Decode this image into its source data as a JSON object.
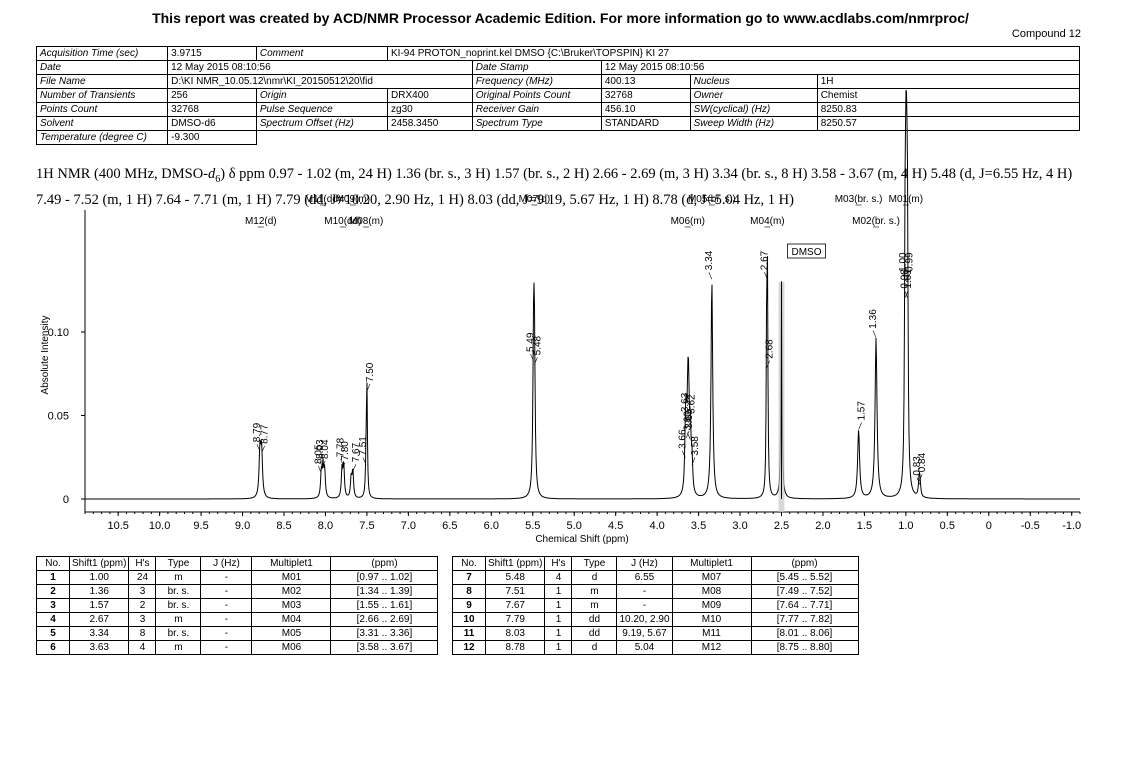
{
  "header": {
    "banner": "This report was created by ACD/NMR Processor Academic Edition. For more information go to www.acdlabs.com/nmrproc/",
    "compound": "Compound 12"
  },
  "acq": {
    "rows": [
      [
        "Acquisition Time (sec)",
        "3.9715",
        "Comment",
        "KI-94 PROTON_noprint.kel DMSO {C:\\Bruker\\TOPSPIN} KI 27",
        "",
        "",
        "",
        ""
      ],
      [
        "Date",
        "12 May 2015 08:10:56",
        "",
        "",
        "Date Stamp",
        "12 May 2015 08:10:56",
        "",
        ""
      ],
      [
        "File Name",
        "D:\\KI NMR_10.05.12\\nmr\\KI_20150512\\20\\fid",
        "",
        "",
        "Frequency (MHz)",
        "400.13",
        "Nucleus",
        "1H"
      ],
      [
        "Number of Transients",
        "256",
        "Origin",
        "DRX400",
        "Original Points Count",
        "32768",
        "Owner",
        "Chemist"
      ],
      [
        "Points Count",
        "32768",
        "Pulse Sequence",
        "zg30",
        "Receiver Gain",
        "456.10",
        "SW(cyclical) (Hz)",
        "8250.83"
      ],
      [
        "Solvent",
        "DMSO-d6",
        "Spectrum Offset (Hz)",
        "2458.3450",
        "Spectrum Type",
        "STANDARD",
        "Sweep Width (Hz)",
        "8250.57"
      ],
      [
        "Temperature (degree C)",
        "-9.300",
        "",
        "",
        "",
        "",
        "",
        ""
      ]
    ]
  },
  "nmr_text": {
    "prefix": "1H NMR (400 MHz, DMSO-",
    "d": "d",
    "sub": "6",
    "rest": ") δ ppm 0.97 - 1.02 (m, 24 H) 1.36 (br. s., 3 H) 1.57 (br. s., 2 H) 2.66 - 2.69 (m, 3 H) 3.34 (br. s., 8 H) 3.58 - 3.67 (m, 4 H) 5.48 (d, J=6.55 Hz, 4 H) 7.49 - 7.52 (m, 1 H) 7.64 - 7.71 (m, 1 H) 7.79 (dd, J=10.20, 2.90 Hz, 1 H) 8.03 (dd, J=9.19, 5.67 Hz, 1 H) 8.78 (d, J=5.04 Hz, 1 H)"
  },
  "chart_data": {
    "type": "line",
    "xlabel": "Chemical Shift (ppm)",
    "ylabel": "Absolute Intensity",
    "xlim": [
      10.9,
      -1.1
    ],
    "ylim": [
      -0.005,
      0.155
    ],
    "x_reversed": true,
    "x_ticks": [
      "10.5",
      "10.0",
      "9.5",
      "9.0",
      "8.5",
      "8.0",
      "7.5",
      "7.0",
      "6.5",
      "6.0",
      "5.5",
      "5.0",
      "4.5",
      "4.0",
      "3.5",
      "3.0",
      "2.5",
      "2.0",
      "1.5",
      "1.0",
      "0.5",
      "0",
      "-0.5",
      "-1.0"
    ],
    "x_tick_values": [
      10.5,
      10.0,
      9.5,
      9.0,
      8.5,
      8.0,
      7.5,
      7.0,
      6.5,
      6.0,
      5.5,
      5.0,
      4.5,
      4.0,
      3.5,
      3.0,
      2.5,
      2.0,
      1.5,
      1.0,
      0.5,
      0,
      -0.5,
      -1.0
    ],
    "y_ticks": [
      "0",
      "0.05",
      "0.10"
    ],
    "y_tick_values": [
      0,
      0.05,
      0.1
    ],
    "peaks": [
      {
        "ppm": 8.79,
        "h": 0.028,
        "w": 0.012
      },
      {
        "ppm": 8.77,
        "h": 0.027,
        "w": 0.012
      },
      {
        "ppm": 8.05,
        "h": 0.015,
        "w": 0.01
      },
      {
        "ppm": 8.03,
        "h": 0.018,
        "w": 0.01
      },
      {
        "ppm": 8.01,
        "h": 0.016,
        "w": 0.01
      },
      {
        "ppm": 7.8,
        "h": 0.017,
        "w": 0.01
      },
      {
        "ppm": 7.78,
        "h": 0.019,
        "w": 0.01
      },
      {
        "ppm": 7.69,
        "h": 0.012,
        "w": 0.01
      },
      {
        "ppm": 7.67,
        "h": 0.016,
        "w": 0.01
      },
      {
        "ppm": 7.51,
        "h": 0.02,
        "w": 0.008
      },
      {
        "ppm": 7.5,
        "h": 0.064,
        "w": 0.007
      },
      {
        "ppm": 5.49,
        "h": 0.082,
        "w": 0.01
      },
      {
        "ppm": 5.48,
        "h": 0.08,
        "w": 0.01
      },
      {
        "ppm": 3.66,
        "h": 0.024,
        "w": 0.01
      },
      {
        "ppm": 3.65,
        "h": 0.036,
        "w": 0.01
      },
      {
        "ppm": 3.63,
        "h": 0.046,
        "w": 0.01
      },
      {
        "ppm": 3.62,
        "h": 0.045,
        "w": 0.01
      },
      {
        "ppm": 3.6,
        "h": 0.035,
        "w": 0.01
      },
      {
        "ppm": 3.58,
        "h": 0.02,
        "w": 0.01
      },
      {
        "ppm": 3.34,
        "h": 0.131,
        "w": 0.012
      },
      {
        "ppm": 2.68,
        "h": 0.078,
        "w": 0.006
      },
      {
        "ppm": 2.67,
        "h": 0.131,
        "w": 0.007
      },
      {
        "ppm": 2.5,
        "h": 0.13,
        "w": 0.008
      },
      {
        "ppm": 1.57,
        "h": 0.041,
        "w": 0.014
      },
      {
        "ppm": 1.36,
        "h": 0.096,
        "w": 0.014
      },
      {
        "ppm": 1.01,
        "h": 0.12,
        "w": 0.008
      },
      {
        "ppm": 1.0,
        "h": 0.13,
        "w": 0.008
      },
      {
        "ppm": 0.99,
        "h": 0.13,
        "w": 0.008
      },
      {
        "ppm": 0.98,
        "h": 0.12,
        "w": 0.008
      },
      {
        "ppm": 0.84,
        "h": 0.01,
        "w": 0.01
      },
      {
        "ppm": 0.83,
        "h": 0.008,
        "w": 0.01
      }
    ],
    "peak_labels": [
      {
        "ppm": 8.79,
        "text": "8.79"
      },
      {
        "ppm": 8.77,
        "text": "8.77"
      },
      {
        "ppm": 8.05,
        "text": "8.05"
      },
      {
        "ppm": 8.04,
        "text": "8.04"
      },
      {
        "ppm": 8.03,
        "text": "8.03"
      },
      {
        "ppm": 7.8,
        "text": "7.80"
      },
      {
        "ppm": 7.78,
        "text": "7.78"
      },
      {
        "ppm": 7.67,
        "text": "7.67"
      },
      {
        "ppm": 7.51,
        "text": "7.51"
      },
      {
        "ppm": 7.5,
        "text": "7.50"
      },
      {
        "ppm": 5.49,
        "text": "5.49"
      },
      {
        "ppm": 5.48,
        "text": "5.48"
      },
      {
        "ppm": 3.66,
        "text": "3.66"
      },
      {
        "ppm": 3.65,
        "text": "3.65"
      },
      {
        "ppm": 3.63,
        "text": "3.63"
      },
      {
        "ppm": 3.62,
        "text": "3.62"
      },
      {
        "ppm": 3.6,
        "text": "3.60"
      },
      {
        "ppm": 3.58,
        "text": "3.58"
      },
      {
        "ppm": 3.34,
        "text": "3.34"
      },
      {
        "ppm": 2.68,
        "text": "2.68"
      },
      {
        "ppm": 2.67,
        "text": "2.67"
      },
      {
        "ppm": 1.57,
        "text": "1.57"
      },
      {
        "ppm": 1.36,
        "text": "1.36"
      },
      {
        "ppm": 1.01,
        "text": "1.01"
      },
      {
        "ppm": 1.0,
        "text": "1.00"
      },
      {
        "ppm": 0.99,
        "text": "0.99"
      },
      {
        "ppm": 0.98,
        "text": "0.98"
      },
      {
        "ppm": 0.84,
        "text": "0.84"
      },
      {
        "ppm": 0.83,
        "text": "0.83"
      }
    ],
    "multiplet_labels": [
      {
        "text": "M01(m)",
        "ppm": 1.0
      },
      {
        "text": "M02(br. s.)",
        "ppm": 1.36
      },
      {
        "text": "M03(br. s.)",
        "ppm": 1.57
      },
      {
        "text": "M04(m)",
        "ppm": 2.67
      },
      {
        "text": "M05(br. s.)",
        "ppm": 3.34
      },
      {
        "text": "M06(m)",
        "ppm": 3.63
      },
      {
        "text": "M07(d)",
        "ppm": 5.48
      },
      {
        "text": "M08(m)",
        "ppm": 7.51
      },
      {
        "text": "M09(m)",
        "ppm": 7.67
      },
      {
        "text": "M10(dd)",
        "ppm": 7.79
      },
      {
        "text": "M11(dd)",
        "ppm": 8.03
      },
      {
        "text": "M12(d)",
        "ppm": 8.78
      }
    ],
    "solvent_label": {
      "text": "DMSO",
      "ppm": 2.5
    }
  },
  "peak_table": {
    "headers": [
      "No.",
      "Shift1 (ppm)",
      "H's",
      "Type",
      "J (Hz)",
      "Multiplet1",
      "(ppm)"
    ],
    "left": [
      [
        "1",
        "1.00",
        "24",
        "m",
        "-",
        "M01",
        "[0.97 .. 1.02]"
      ],
      [
        "2",
        "1.36",
        "3",
        "br. s.",
        "-",
        "M02",
        "[1.34 .. 1.39]"
      ],
      [
        "3",
        "1.57",
        "2",
        "br. s.",
        "-",
        "M03",
        "[1.55 .. 1.61]"
      ],
      [
        "4",
        "2.67",
        "3",
        "m",
        "-",
        "M04",
        "[2.66 .. 2.69]"
      ],
      [
        "5",
        "3.34",
        "8",
        "br. s.",
        "-",
        "M05",
        "[3.31 .. 3.36]"
      ],
      [
        "6",
        "3.63",
        "4",
        "m",
        "-",
        "M06",
        "[3.58 .. 3.67]"
      ]
    ],
    "right": [
      [
        "7",
        "5.48",
        "4",
        "d",
        "6.55",
        "M07",
        "[5.45 .. 5.52]"
      ],
      [
        "8",
        "7.51",
        "1",
        "m",
        "-",
        "M08",
        "[7.49 .. 7.52]"
      ],
      [
        "9",
        "7.67",
        "1",
        "m",
        "-",
        "M09",
        "[7.64 .. 7.71]"
      ],
      [
        "10",
        "7.79",
        "1",
        "dd",
        "10.20, 2.90",
        "M10",
        "[7.77 .. 7.82]"
      ],
      [
        "11",
        "8.03",
        "1",
        "dd",
        "9.19, 5.67",
        "M11",
        "[8.01 .. 8.06]"
      ],
      [
        "12",
        "8.78",
        "1",
        "d",
        "5.04",
        "M12",
        "[8.75 .. 8.80]"
      ]
    ]
  }
}
